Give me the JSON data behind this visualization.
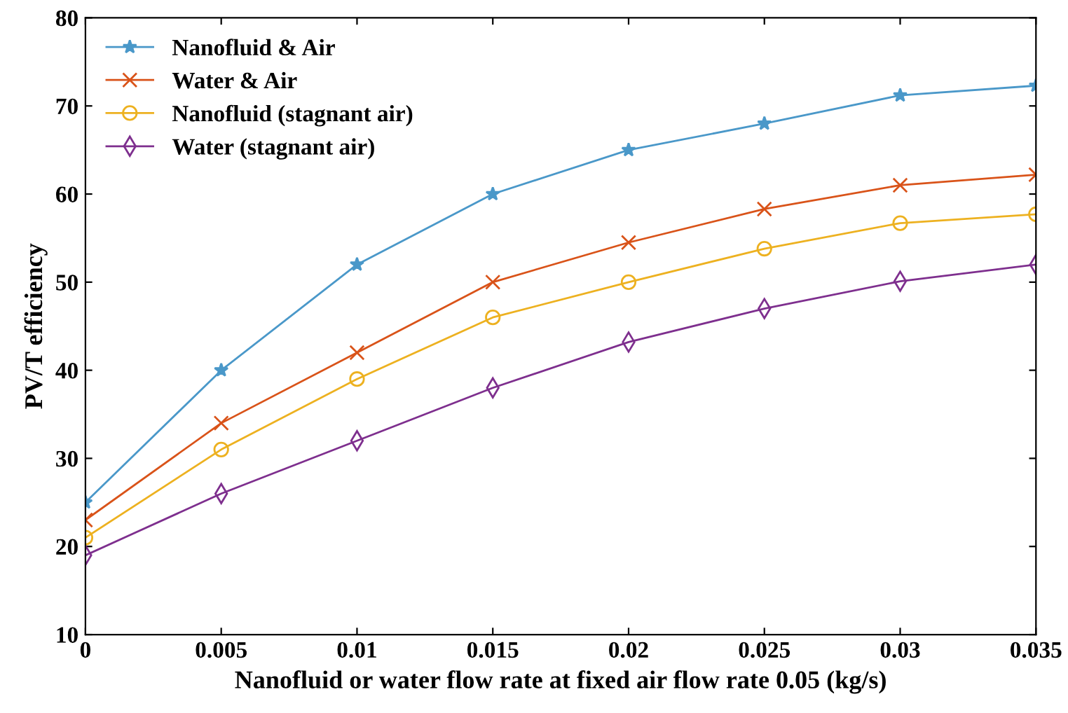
{
  "chart_data": {
    "type": "line",
    "xlabel": "Nanofluid or water flow rate at fixed air flow rate 0.05 (kg/s)",
    "ylabel": "PV/T efficiency",
    "x": [
      0,
      0.005,
      0.01,
      0.015,
      0.02,
      0.025,
      0.03,
      0.035
    ],
    "xlim": [
      0,
      0.035
    ],
    "xticks": [
      0,
      0.005,
      0.01,
      0.015,
      0.02,
      0.025,
      0.03,
      0.035
    ],
    "ylim": [
      10,
      80
    ],
    "yticks": [
      10,
      20,
      30,
      40,
      50,
      60,
      70,
      80
    ],
    "grid": false,
    "legend": "top left",
    "line_style": "solid",
    "series": [
      {
        "name": "Nanofluid & Air",
        "color": "#4a98c9",
        "marker": "star",
        "values": [
          25,
          40,
          52,
          60,
          65,
          68,
          71.2,
          72.3
        ]
      },
      {
        "name": "Water & Air",
        "color": "#d95319",
        "marker": "cross",
        "values": [
          23,
          34,
          42,
          50,
          54.5,
          58.3,
          61,
          62.2
        ]
      },
      {
        "name": "Nanofluid (stagnant air)",
        "color": "#edb120",
        "marker": "circle",
        "values": [
          21,
          31,
          39,
          46,
          50,
          53.8,
          56.7,
          57.7
        ]
      },
      {
        "name": "Water (stagnant air)",
        "color": "#7e2f8e",
        "marker": "diamond",
        "values": [
          19,
          26,
          32,
          38,
          43.2,
          47,
          50.1,
          52
        ]
      }
    ]
  }
}
